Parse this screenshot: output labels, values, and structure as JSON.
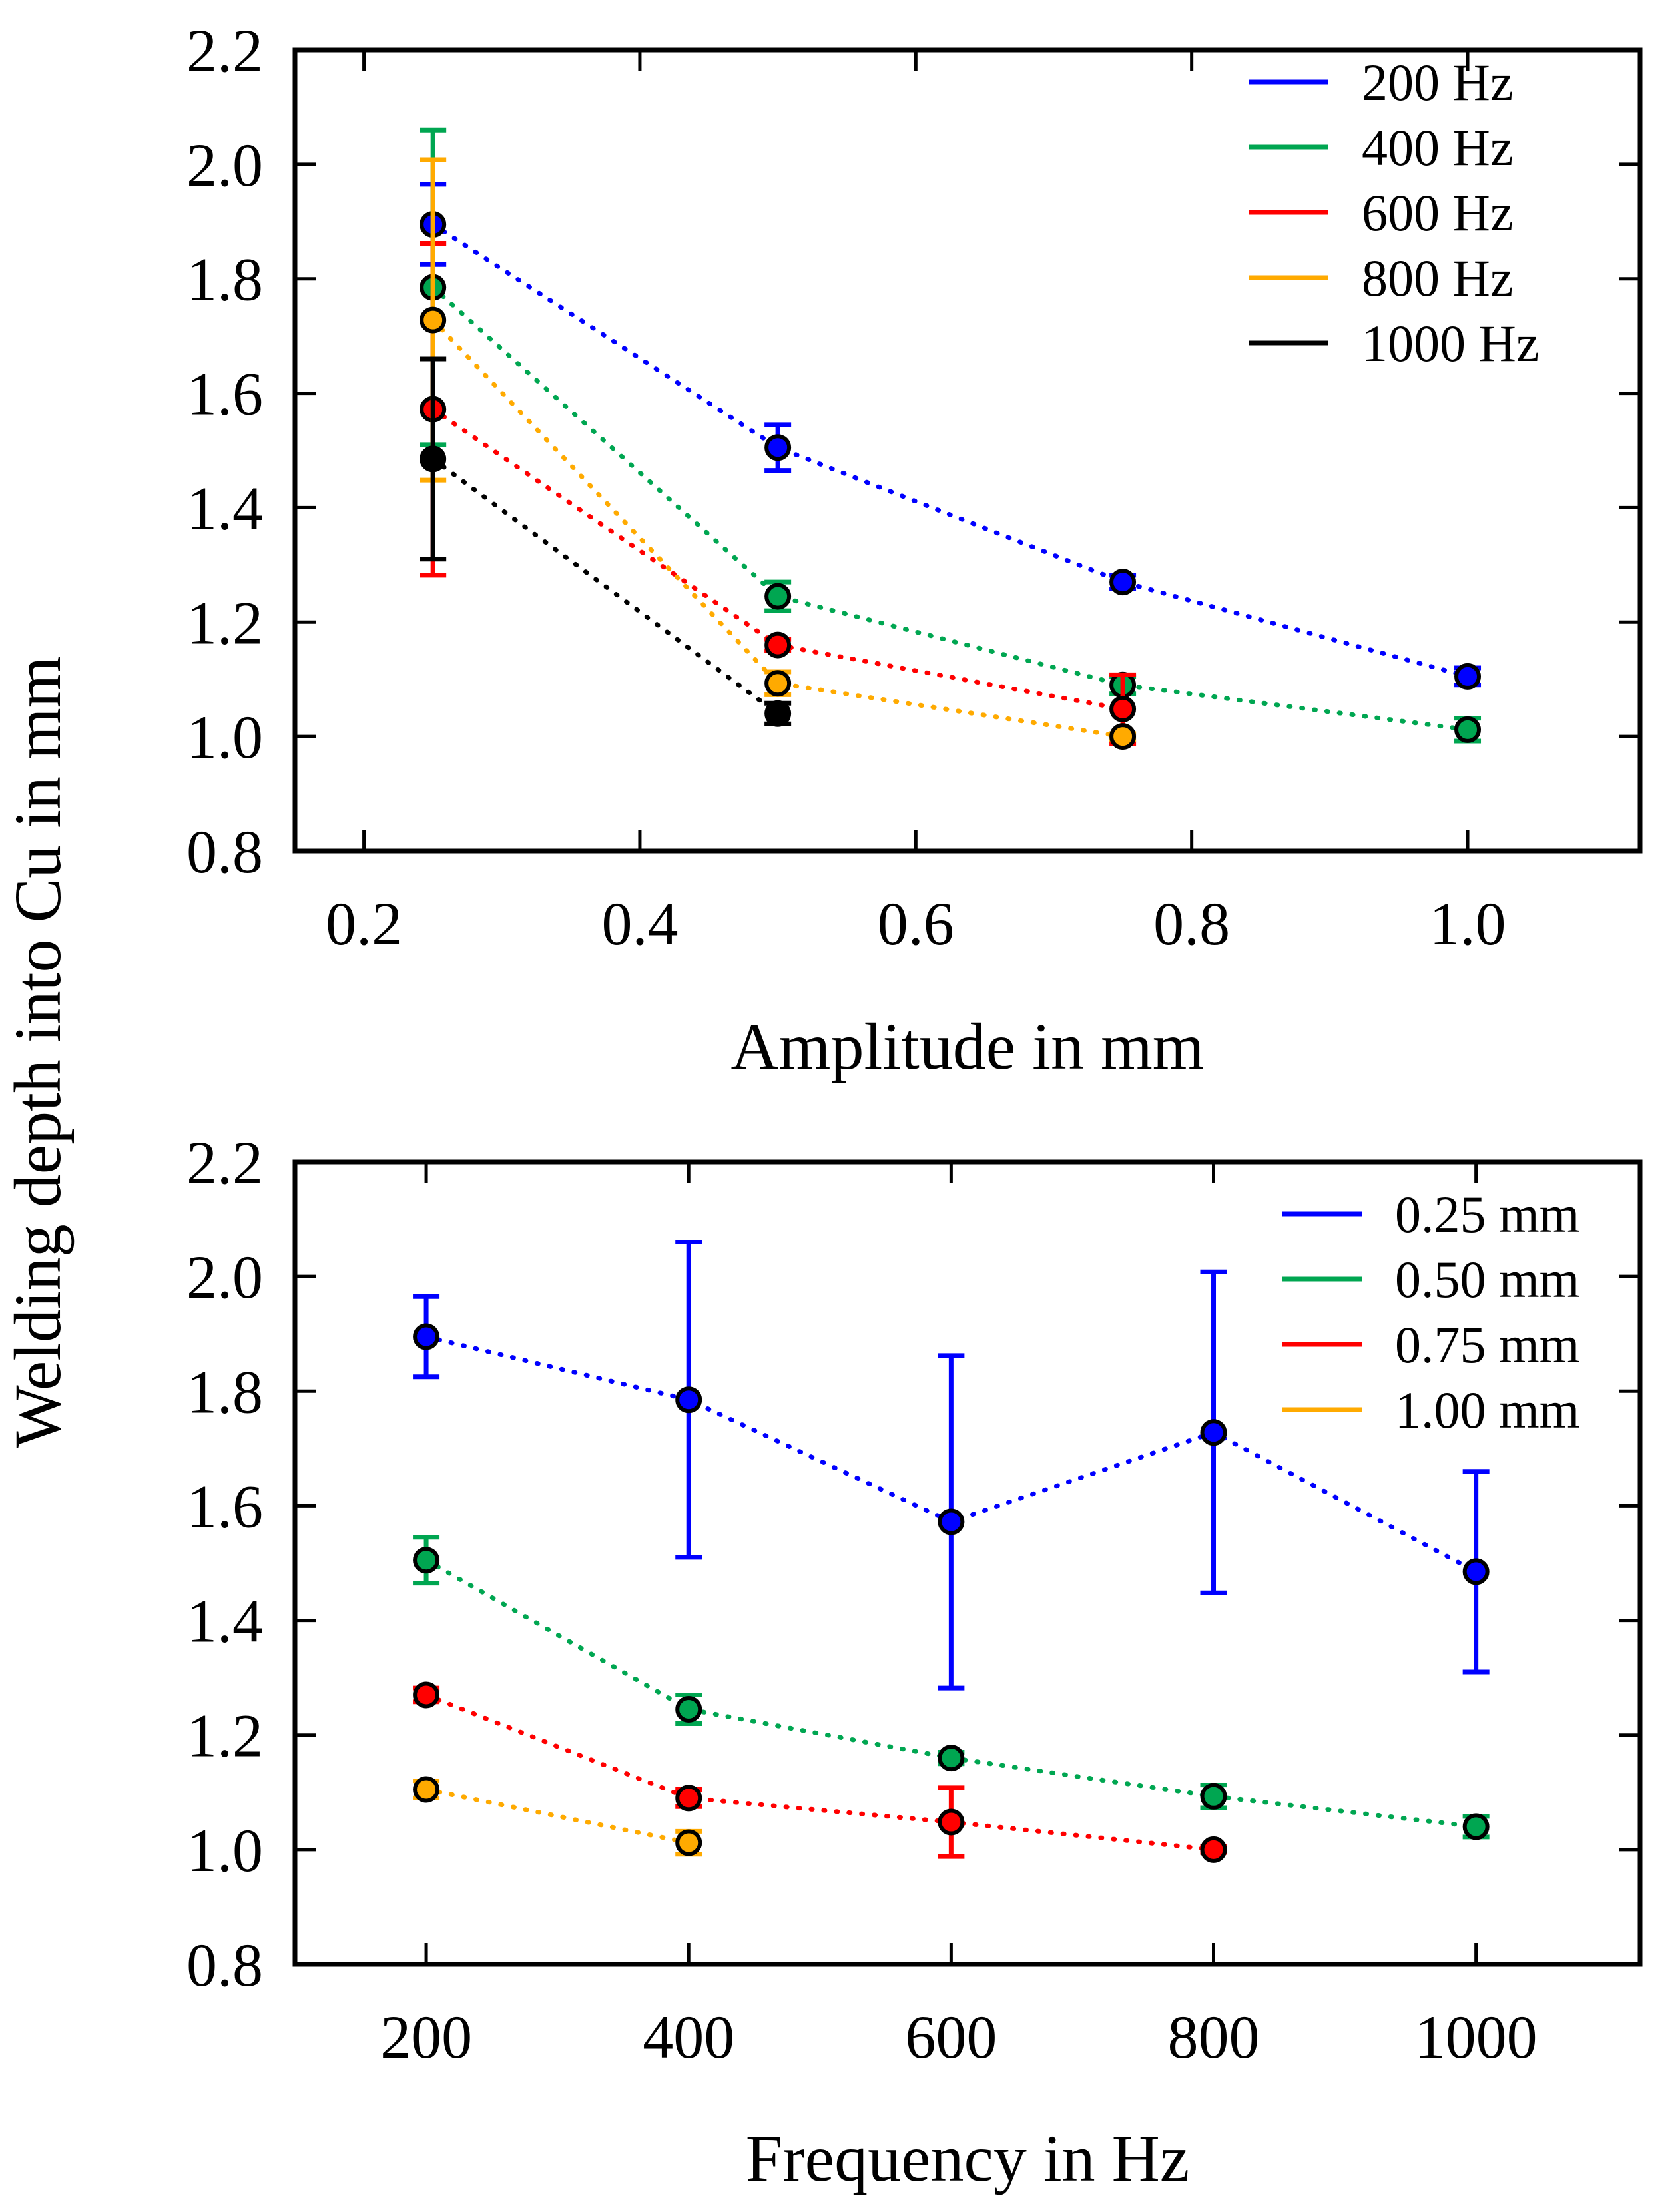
{
  "figure": {
    "ylabel": "Welding depth into Cu in mm"
  },
  "chart_data": [
    {
      "type": "line",
      "xlabel": "Amplitude in mm",
      "ylabel": "Welding depth into Cu in mm",
      "xlim": [
        0.15,
        1.125
      ],
      "ylim": [
        0.8,
        2.2
      ],
      "xticks": [
        0.2,
        0.4,
        0.6,
        0.8,
        1.0
      ],
      "xtick_labels": [
        "0.2",
        "0.4",
        "0.6",
        "0.8",
        "1.0"
      ],
      "yticks": [
        0.8,
        1.0,
        1.2,
        1.4,
        1.6,
        1.8,
        2.0,
        2.2
      ],
      "ytick_labels": [
        "0.8",
        "1.0",
        "1.2",
        "1.4",
        "1.6",
        "1.8",
        "2.0",
        "2.2"
      ],
      "grid": false,
      "legend_position": "top-right",
      "line_style": "dotted",
      "series": [
        {
          "name": "200 Hz",
          "color": "#0000ff",
          "x": [
            0.25,
            0.5,
            0.75,
            1.0
          ],
          "y": [
            1.895,
            1.505,
            1.27,
            1.105
          ],
          "err": [
            0.07,
            0.04,
            0.012,
            0.015
          ]
        },
        {
          "name": "400 Hz",
          "color": "#00a651",
          "x": [
            0.25,
            0.5,
            0.75,
            1.0
          ],
          "y": [
            1.785,
            1.245,
            1.09,
            1.012
          ],
          "err": [
            0.275,
            0.025,
            0.015,
            0.02
          ]
        },
        {
          "name": "600 Hz",
          "color": "#ff0000",
          "x": [
            0.25,
            0.5,
            0.75
          ],
          "y": [
            1.572,
            1.16,
            1.048
          ],
          "err": [
            0.29,
            0.01,
            0.06
          ]
        },
        {
          "name": "800 Hz",
          "color": "#ffaa00",
          "x": [
            0.25,
            0.5,
            0.75
          ],
          "y": [
            1.728,
            1.093,
            1.0
          ],
          "err": [
            0.28,
            0.02,
            0.005
          ]
        },
        {
          "name": "1000 Hz",
          "color": "#000000",
          "x": [
            0.25,
            0.5
          ],
          "y": [
            1.485,
            1.04
          ],
          "err": [
            0.175,
            0.018
          ]
        }
      ]
    },
    {
      "type": "line",
      "xlabel": "Frequency in Hz",
      "ylabel": "Welding depth into Cu in mm",
      "xlim": [
        100,
        1125
      ],
      "ylim": [
        0.8,
        2.2
      ],
      "xticks": [
        200,
        400,
        600,
        800,
        1000
      ],
      "xtick_labels": [
        "200",
        "400",
        "600",
        "800",
        "1000"
      ],
      "yticks": [
        0.8,
        1.0,
        1.2,
        1.4,
        1.6,
        1.8,
        2.0,
        2.2
      ],
      "ytick_labels": [
        "0.8",
        "1.0",
        "1.2",
        "1.4",
        "1.6",
        "1.8",
        "2.0",
        "2.2"
      ],
      "grid": false,
      "legend_position": "top-right",
      "line_style": "dotted",
      "series": [
        {
          "name": "0.25 mm",
          "color": "#0000ff",
          "x": [
            200,
            400,
            600,
            800,
            1000
          ],
          "y": [
            1.895,
            1.785,
            1.572,
            1.728,
            1.485
          ],
          "err": [
            0.07,
            0.275,
            0.29,
            0.28,
            0.175
          ]
        },
        {
          "name": "0.50 mm",
          "color": "#00a651",
          "x": [
            200,
            400,
            600,
            800,
            1000
          ],
          "y": [
            1.505,
            1.245,
            1.16,
            1.093,
            1.04
          ],
          "err": [
            0.04,
            0.025,
            0.01,
            0.02,
            0.018
          ]
        },
        {
          "name": "0.75 mm",
          "color": "#ff0000",
          "x": [
            200,
            400,
            600,
            800
          ],
          "y": [
            1.27,
            1.09,
            1.048,
            1.0
          ],
          "err": [
            0.012,
            0.015,
            0.06,
            0.005
          ]
        },
        {
          "name": "1.00 mm",
          "color": "#ffaa00",
          "x": [
            200,
            400
          ],
          "y": [
            1.105,
            1.012
          ],
          "err": [
            0.015,
            0.02
          ]
        }
      ]
    }
  ]
}
